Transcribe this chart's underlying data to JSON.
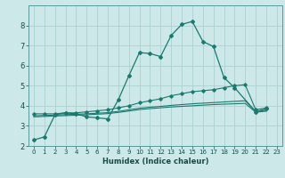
{
  "xlabel": "Humidex (Indice chaleur)",
  "bg_color": "#cce8e8",
  "grid_color": "#aed0d0",
  "line_color": "#1a7a6e",
  "xlim": [
    -0.5,
    23.5
  ],
  "ylim": [
    2,
    9
  ],
  "yticks": [
    2,
    3,
    4,
    5,
    6,
    7,
    8
  ],
  "xticks": [
    0,
    1,
    2,
    3,
    4,
    5,
    6,
    7,
    8,
    9,
    10,
    11,
    12,
    13,
    14,
    15,
    16,
    17,
    18,
    19,
    20,
    21,
    22,
    23
  ],
  "series1_x": [
    0,
    1,
    2,
    3,
    4,
    5,
    6,
    7,
    8,
    9,
    10,
    11,
    12,
    13,
    14,
    15,
    16,
    17,
    18,
    19,
    21,
    22
  ],
  "series1_y": [
    2.3,
    2.45,
    3.55,
    3.65,
    3.6,
    3.45,
    3.4,
    3.35,
    4.3,
    5.5,
    6.65,
    6.6,
    6.45,
    7.5,
    8.05,
    8.2,
    7.2,
    6.95,
    5.4,
    4.9,
    3.7,
    3.85
  ],
  "series2_x": [
    0,
    1,
    2,
    3,
    4,
    5,
    6,
    7,
    8,
    9,
    10,
    11,
    12,
    13,
    14,
    15,
    16,
    17,
    18,
    19,
    20,
    21,
    22
  ],
  "series2_y": [
    3.6,
    3.6,
    3.6,
    3.65,
    3.65,
    3.7,
    3.75,
    3.8,
    3.9,
    4.0,
    4.15,
    4.25,
    4.35,
    4.5,
    4.6,
    4.7,
    4.75,
    4.8,
    4.9,
    5.0,
    5.05,
    3.8,
    3.9
  ],
  "series3_x": [
    0,
    1,
    2,
    3,
    4,
    5,
    6,
    7,
    8,
    9,
    10,
    11,
    12,
    13,
    14,
    15,
    16,
    17,
    18,
    19,
    20,
    21,
    22
  ],
  "series3_y": [
    3.5,
    3.52,
    3.54,
    3.56,
    3.58,
    3.6,
    3.63,
    3.66,
    3.72,
    3.8,
    3.88,
    3.93,
    3.97,
    4.02,
    4.06,
    4.1,
    4.13,
    4.16,
    4.19,
    4.22,
    4.25,
    3.72,
    3.78
  ],
  "series4_x": [
    0,
    1,
    2,
    3,
    4,
    5,
    6,
    7,
    8,
    9,
    10,
    11,
    12,
    13,
    14,
    15,
    16,
    17,
    18,
    19,
    20,
    21,
    22
  ],
  "series4_y": [
    3.45,
    3.47,
    3.49,
    3.51,
    3.53,
    3.55,
    3.58,
    3.61,
    3.67,
    3.74,
    3.81,
    3.86,
    3.9,
    3.94,
    3.97,
    4.0,
    4.03,
    4.06,
    4.08,
    4.1,
    4.12,
    3.68,
    3.73
  ]
}
